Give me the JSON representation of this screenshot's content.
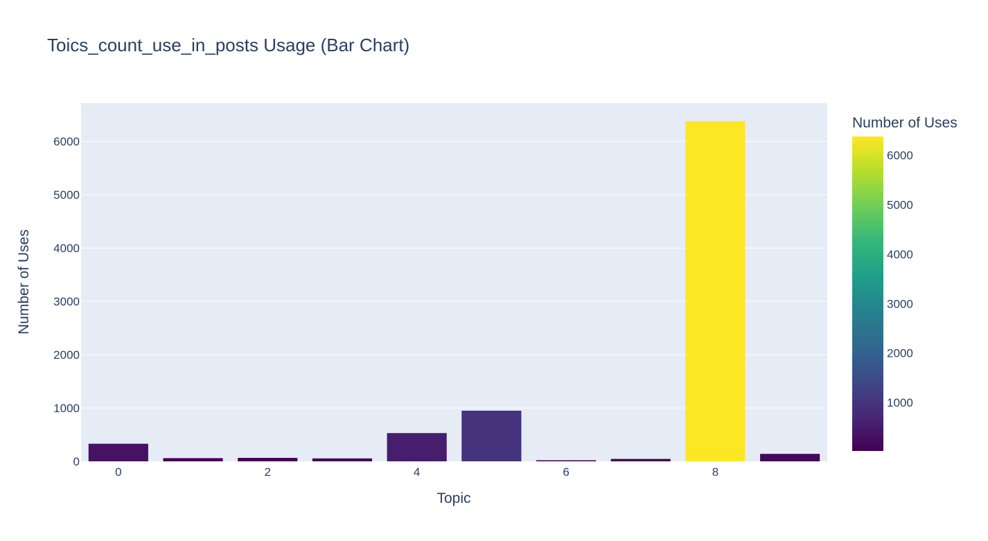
{
  "chart_data": {
    "type": "bar",
    "title": "Toics_count_use_in_posts Usage (Bar Chart)",
    "xlabel": "Topic",
    "ylabel": "Number of Uses",
    "x": [
      0,
      1,
      2,
      3,
      4,
      5,
      6,
      7,
      8,
      9
    ],
    "values": [
      330,
      60,
      65,
      55,
      530,
      950,
      20,
      45,
      6380,
      140
    ],
    "xticks": [
      0,
      2,
      4,
      6,
      8
    ],
    "yticks": [
      0,
      1000,
      2000,
      3000,
      4000,
      5000,
      6000
    ],
    "ylim": [
      0,
      6716
    ],
    "xlim": [
      -0.5,
      9.5
    ],
    "grid": true,
    "plot_bgcolor": "#e5ecf6",
    "colorscale": "Viridis",
    "colorbar": {
      "title": "Number of Uses",
      "range": [
        20,
        6380
      ],
      "ticks": [
        1000,
        2000,
        3000,
        4000,
        5000,
        6000
      ]
    }
  },
  "colors": {
    "viridis": [
      "#440154",
      "#482878",
      "#3e4989",
      "#31688e",
      "#26828e",
      "#1f9e89",
      "#35b779",
      "#6ece58",
      "#b5de2b",
      "#fde725"
    ],
    "text": "#2a3f5f",
    "gridline": "#ffffff"
  }
}
